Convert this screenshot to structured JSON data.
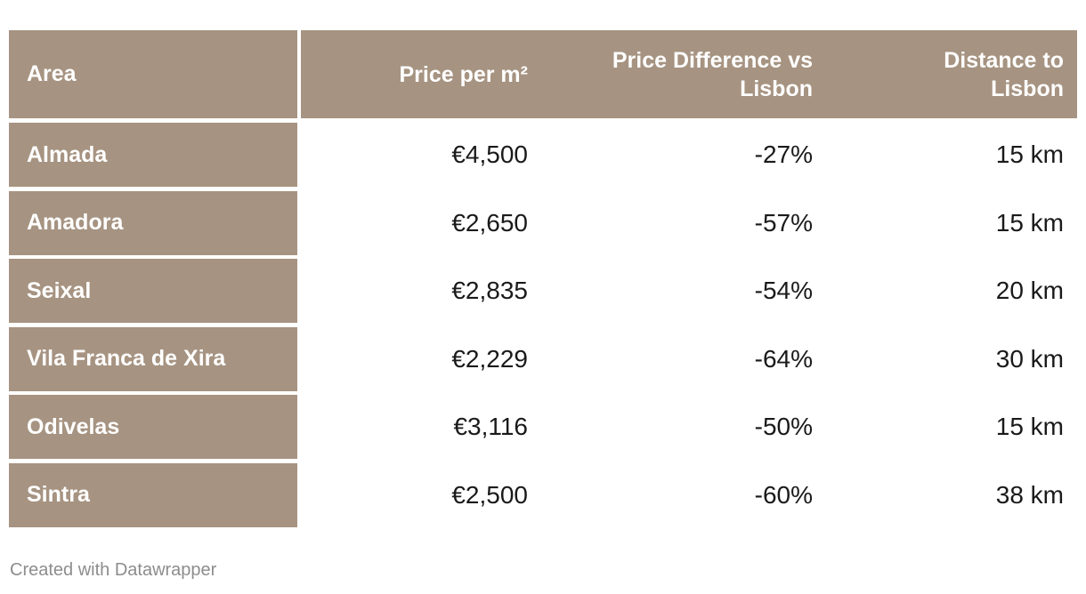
{
  "colors": {
    "accent_tan": "#a69381",
    "header_text": "#ffffff",
    "body_text": "#1a1a1a",
    "attribution_text": "#8d8d8d",
    "background": "#ffffff"
  },
  "table": {
    "header": {
      "area": "Area",
      "price": "Price per m²",
      "diff": "Price Difference vs\nLisbon",
      "distance": "Distance to\nLisbon"
    },
    "rows": [
      {
        "area": "Almada",
        "price": "€4,500",
        "diff": "-27%",
        "distance": "15 km"
      },
      {
        "area": "Amadora",
        "price": "€2,650",
        "diff": "-57%",
        "distance": "15 km"
      },
      {
        "area": "Seixal",
        "price": "€2,835",
        "diff": "-54%",
        "distance": "20 km"
      },
      {
        "area": "Vila Franca de Xira",
        "price": "€2,229",
        "diff": "-64%",
        "distance": "30 km"
      },
      {
        "area": "Odivelas",
        "price": "€3,116",
        "diff": "-50%",
        "distance": "15 km"
      },
      {
        "area": "Sintra",
        "price": "€2,500",
        "diff": "-60%",
        "distance": "38 km"
      }
    ]
  },
  "footer": {
    "attribution": "Created with Datawrapper"
  },
  "chart_data": {
    "type": "table",
    "title": "",
    "columns": [
      "Area",
      "Price per m²",
      "Price Difference vs Lisbon",
      "Distance to Lisbon"
    ],
    "rows": [
      [
        "Almada",
        "€4,500",
        "-27%",
        "15 km"
      ],
      [
        "Amadora",
        "€2,650",
        "-57%",
        "15 km"
      ],
      [
        "Seixal",
        "€2,835",
        "-54%",
        "20 km"
      ],
      [
        "Vila Franca de Xira",
        "€2,229",
        "-64%",
        "30 km"
      ],
      [
        "Odivelas",
        "€3,116",
        "-50%",
        "15 km"
      ],
      [
        "Sintra",
        "€2,500",
        "-60%",
        "38 km"
      ]
    ],
    "attribution": "Created with Datawrapper"
  }
}
